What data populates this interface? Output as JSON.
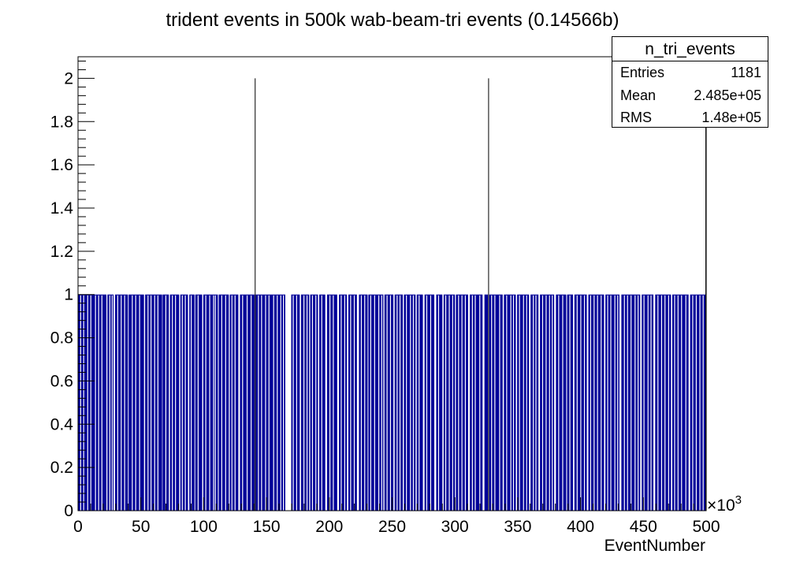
{
  "chart_data": {
    "type": "bar",
    "title": "trident events in 500k wab-beam-tri events (0.14566b)",
    "xlabel": "EventNumber",
    "ylabel": "",
    "x_multiplier_label": "×10",
    "x_multiplier_exp": "3",
    "xlim": [
      0,
      500
    ],
    "ylim": [
      0,
      2.1
    ],
    "x_ticks": [
      "0",
      "50",
      "100",
      "150",
      "200",
      "250",
      "300",
      "350",
      "400",
      "450",
      "500"
    ],
    "y_ticks": [
      "0",
      "0.2",
      "0.4",
      "0.6",
      "0.8",
      "1",
      "1.2",
      "1.4",
      "1.6",
      "1.8",
      "2"
    ],
    "series": [
      {
        "name": "n_tri_events",
        "color": "#000099",
        "fill_segments": [
          [
            0.2,
            22.6
          ],
          [
            23.4,
            28.3
          ],
          [
            29.5,
            39.7
          ],
          [
            40.3,
            52.5
          ],
          [
            53.4,
            66.9
          ],
          [
            67.3,
            72.3
          ],
          [
            73.2,
            80.5
          ],
          [
            81.4,
            87.5
          ],
          [
            88.6,
            92.7
          ],
          [
            93.3,
            98.8
          ],
          [
            99.7,
            111.3
          ],
          [
            112.0,
            120.0
          ],
          [
            120.8,
            127.6
          ],
          [
            128.9,
            140.5
          ],
          [
            141.2,
            165.0
          ],
          [
            169.7,
            176.5
          ],
          [
            177.5,
            184.0
          ],
          [
            184.8,
            191.0
          ],
          [
            192.0,
            196.8
          ],
          [
            198.2,
            206.3
          ],
          [
            207.7,
            214.0
          ],
          [
            215.2,
            222.0
          ],
          [
            223.6,
            230.5
          ],
          [
            231.1,
            243.0
          ],
          [
            243.9,
            251.0
          ],
          [
            252.0,
            258.5
          ],
          [
            259.4,
            268.7
          ],
          [
            269.6,
            274.5
          ],
          [
            275.8,
            283.6
          ],
          [
            285.1,
            290.0
          ],
          [
            291.0,
            300.0
          ],
          [
            300.8,
            310.5
          ],
          [
            311.8,
            322.0
          ],
          [
            323.5,
            326.3
          ],
          [
            327.3,
            338.0
          ],
          [
            339.0,
            348.5
          ],
          [
            349.5,
            359.0
          ],
          [
            360.2,
            366.5
          ],
          [
            367.7,
            379.0
          ],
          [
            380.4,
            388.6
          ],
          [
            389.3,
            394.0
          ],
          [
            395.1,
            405.0
          ],
          [
            406.2,
            418.7
          ],
          [
            419.8,
            431.0
          ],
          [
            432.5,
            447.5
          ],
          [
            448.7,
            458.0
          ],
          [
            459.4,
            472.0
          ],
          [
            473.0,
            486.0
          ],
          [
            487.2,
            499.6
          ]
        ],
        "gap_lines": [
          2.1,
          4.5,
          7.7,
          10.2,
          13.9,
          16.4,
          19.0,
          25.3,
          27.2,
          31.6,
          34.4,
          37.1,
          43.2,
          45.9,
          49.0,
          55.7,
          58.1,
          61.0,
          63.6,
          69.9,
          75.1,
          77.6,
          83.0,
          85.4,
          90.1,
          95.6,
          101.7,
          104.8,
          107.9,
          109.3,
          114.4,
          117.5,
          122.5,
          125.0,
          131.0,
          134.6,
          137.8,
          143.6,
          146.1,
          149.3,
          152.0,
          155.7,
          158.6,
          161.4,
          163.5,
          171.3,
          174.0,
          179.8,
          182.3,
          186.6,
          189.3,
          194.0,
          200.5,
          203.2,
          209.5,
          212.3,
          217.0,
          219.9,
          225.5,
          228.2,
          233.0,
          236.1,
          239.4,
          241.7,
          246.0,
          248.7,
          254.0,
          256.3,
          261.4,
          264.6,
          266.9,
          271.5,
          277.6,
          280.7,
          287.0,
          292.7,
          295.5,
          298.2,
          302.9,
          305.6,
          308.3,
          313.9,
          316.2,
          319.8,
          329.2,
          331.8,
          335.6,
          341.2,
          344.5,
          346.6,
          351.4,
          354.6,
          357.1,
          362.4,
          364.5,
          369.8,
          372.6,
          375.3,
          377.5,
          382.6,
          385.8,
          391.5,
          397.3,
          400.2,
          403.1,
          408.0,
          410.8,
          413.5,
          416.4,
          421.6,
          424.1,
          427.3,
          429.6,
          434.9,
          437.4,
          440.2,
          443.4,
          445.8,
          450.5,
          453.7,
          456.1,
          461.6,
          464.5,
          467.2,
          470.1,
          474.9,
          477.6,
          480.4,
          483.8,
          489.3,
          492.1,
          495.0,
          497.6
        ],
        "spikes": [
          {
            "x": 141.0,
            "y": 2
          },
          {
            "x": 326.8,
            "y": 2
          },
          {
            "x": 499.7,
            "y": 2
          }
        ]
      }
    ],
    "grid": false,
    "legend": "top-right",
    "stats": {
      "name": "n_tri_events",
      "rows": [
        {
          "label": "Entries",
          "value": "1181"
        },
        {
          "label": "Mean",
          "value": "2.485e+05"
        },
        {
          "label": "RMS",
          "value": "1.48e+05"
        }
      ]
    }
  }
}
